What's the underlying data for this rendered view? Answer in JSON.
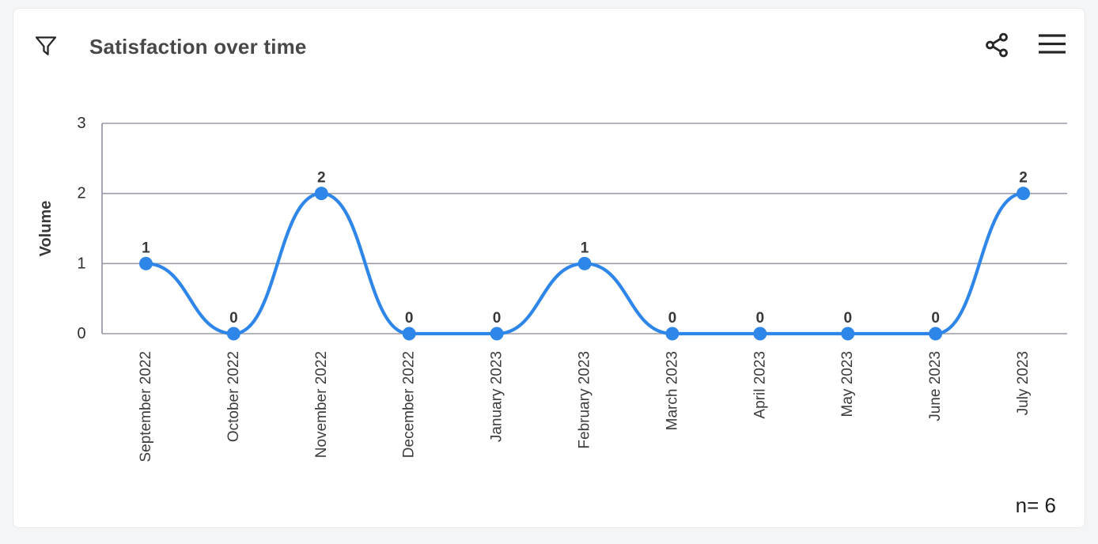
{
  "header": {
    "title": "Satisfaction over time"
  },
  "footer": {
    "sample_size": "n= 6"
  },
  "colors": {
    "line": "#2e86e8",
    "grid": "#9b9caa",
    "page_bg": "#f4f5f7",
    "card_bg": "#ffffff"
  },
  "icons": {
    "filter": "filter-funnel",
    "share": "share-nodes",
    "menu": "hamburger-menu"
  },
  "chart_data": {
    "type": "line",
    "title": "Satisfaction over time",
    "categories": [
      "September 2022",
      "October 2022",
      "November 2022",
      "December 2022",
      "January 2023",
      "February 2023",
      "March 2023",
      "April 2023",
      "May 2023",
      "June 2023",
      "July 2023"
    ],
    "series": [
      {
        "name": "Volume",
        "values": [
          1,
          0,
          2,
          0,
          0,
          1,
          0,
          0,
          0,
          0,
          2
        ]
      }
    ],
    "xlabel": "",
    "ylabel": "Volume",
    "ylim": [
      0,
      3
    ],
    "yticks": [
      0,
      1,
      2,
      3
    ],
    "grid": true,
    "legend": false,
    "smooth": true,
    "point_labels": true,
    "sample_size_label": "n= 6"
  }
}
